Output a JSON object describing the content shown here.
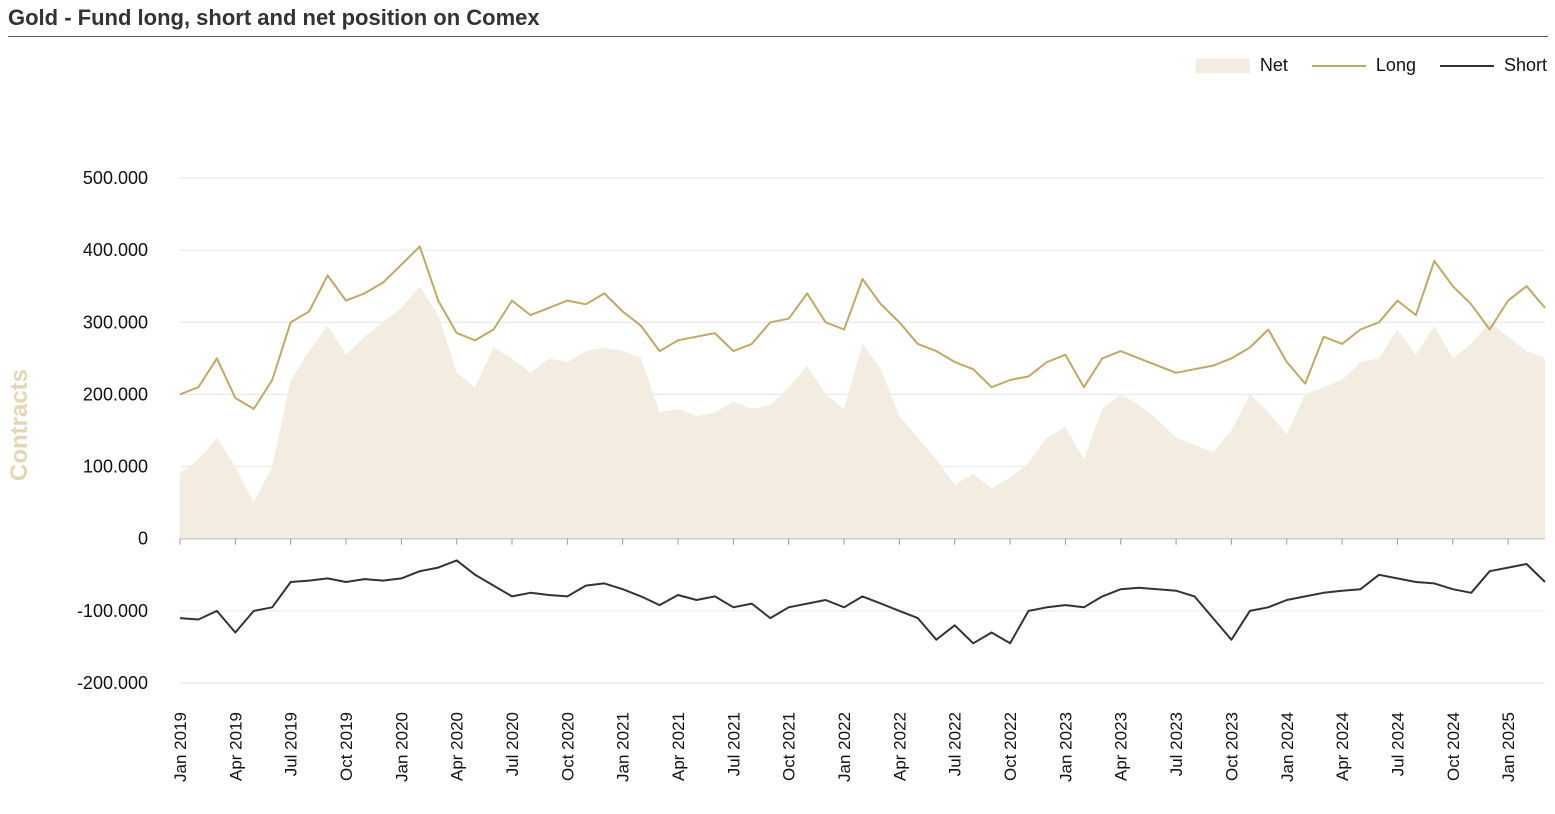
{
  "title": "Gold - Fund long, short and net position on Comex",
  "colors": {
    "net": "#f3ede1",
    "long": "#c1a865",
    "short": "#333333",
    "ylabel": "#e4d5b3",
    "grid": "#e6e6e6"
  },
  "chart_data": {
    "type": "line",
    "title": "Gold - Fund long, short and net position on Comex",
    "xlabel": "",
    "ylabel": "Contracts",
    "ylim": [
      -200000,
      500000
    ],
    "yticks": [
      500000,
      400000,
      300000,
      200000,
      100000,
      0,
      -100000,
      -200000
    ],
    "ytick_labels": [
      "500.000",
      "400.000",
      "300.000",
      "200.000",
      "100.000",
      "0",
      "-100.000",
      "-200.000"
    ],
    "x_start": "2019-01",
    "x_end": "2025-03",
    "xtick_labels": [
      "Jan 2019",
      "Apr 2019",
      "Jul 2019",
      "Oct 2019",
      "Jan 2020",
      "Apr 2020",
      "Jul 2020",
      "Oct 2020",
      "Jan 2021",
      "Apr 2021",
      "Jul 2021",
      "Oct 2021",
      "Jan 2022",
      "Apr 2022",
      "Jul 2022",
      "Oct 2022",
      "Jan 2023",
      "Apr 2023",
      "Jul 2023",
      "Oct 2023",
      "Jan 2024",
      "Apr 2024",
      "Jul 2024",
      "Oct 2024",
      "Jan 2025"
    ],
    "grid": true,
    "legend_position": "top-right",
    "x": [
      "Jan 2019",
      "Feb 2019",
      "Mar 2019",
      "Apr 2019",
      "May 2019",
      "Jun 2019",
      "Jul 2019",
      "Aug 2019",
      "Sep 2019",
      "Oct 2019",
      "Nov 2019",
      "Dec 2019",
      "Jan 2020",
      "Feb 2020",
      "Mar 2020",
      "Apr 2020",
      "May 2020",
      "Jun 2020",
      "Jul 2020",
      "Aug 2020",
      "Sep 2020",
      "Oct 2020",
      "Nov 2020",
      "Dec 2020",
      "Jan 2021",
      "Feb 2021",
      "Mar 2021",
      "Apr 2021",
      "May 2021",
      "Jun 2021",
      "Jul 2021",
      "Aug 2021",
      "Sep 2021",
      "Oct 2021",
      "Nov 2021",
      "Dec 2021",
      "Jan 2022",
      "Feb 2022",
      "Mar 2022",
      "Apr 2022",
      "May 2022",
      "Jun 2022",
      "Jul 2022",
      "Aug 2022",
      "Sep 2022",
      "Oct 2022",
      "Nov 2022",
      "Dec 2022",
      "Jan 2023",
      "Feb 2023",
      "Mar 2023",
      "Apr 2023",
      "May 2023",
      "Jun 2023",
      "Jul 2023",
      "Aug 2023",
      "Sep 2023",
      "Oct 2023",
      "Nov 2023",
      "Dec 2023",
      "Jan 2024",
      "Feb 2024",
      "Mar 2024",
      "Apr 2024",
      "May 2024",
      "Jun 2024",
      "Jul 2024",
      "Aug 2024",
      "Sep 2024",
      "Oct 2024",
      "Nov 2024",
      "Dec 2024",
      "Jan 2025",
      "Feb 2025",
      "Mar 2025"
    ],
    "series": [
      {
        "name": "Net",
        "type": "area",
        "values": [
          90000,
          110000,
          140000,
          100000,
          50000,
          100000,
          220000,
          260000,
          295000,
          255000,
          280000,
          300000,
          320000,
          350000,
          310000,
          230000,
          210000,
          265000,
          250000,
          230000,
          250000,
          245000,
          260000,
          265000,
          260000,
          250000,
          175000,
          180000,
          170000,
          175000,
          190000,
          180000,
          185000,
          210000,
          240000,
          200000,
          180000,
          270000,
          235000,
          170000,
          140000,
          110000,
          75000,
          90000,
          70000,
          85000,
          105000,
          140000,
          155000,
          110000,
          180000,
          200000,
          185000,
          165000,
          140000,
          130000,
          120000,
          150000,
          200000,
          175000,
          145000,
          200000,
          210000,
          220000,
          245000,
          250000,
          290000,
          255000,
          295000,
          250000,
          270000,
          300000,
          280000,
          260000,
          250000
        ]
      },
      {
        "name": "Long",
        "type": "line",
        "values": [
          200000,
          210000,
          250000,
          195000,
          180000,
          220000,
          300000,
          315000,
          365000,
          330000,
          340000,
          355000,
          380000,
          405000,
          330000,
          285000,
          275000,
          290000,
          330000,
          310000,
          320000,
          330000,
          325000,
          340000,
          315000,
          295000,
          260000,
          275000,
          280000,
          285000,
          260000,
          270000,
          300000,
          305000,
          340000,
          300000,
          290000,
          360000,
          325000,
          300000,
          270000,
          260000,
          245000,
          235000,
          210000,
          220000,
          225000,
          245000,
          255000,
          210000,
          250000,
          260000,
          250000,
          240000,
          230000,
          235000,
          240000,
          250000,
          265000,
          290000,
          245000,
          215000,
          280000,
          270000,
          290000,
          300000,
          330000,
          310000,
          385000,
          350000,
          325000,
          290000,
          330000,
          350000,
          320000
        ]
      },
      {
        "name": "Short",
        "type": "line",
        "values": [
          -110000,
          -112000,
          -100000,
          -130000,
          -100000,
          -95000,
          -60000,
          -58000,
          -55000,
          -60000,
          -56000,
          -58000,
          -55000,
          -45000,
          -40000,
          -30000,
          -50000,
          -65000,
          -80000,
          -75000,
          -78000,
          -80000,
          -65000,
          -62000,
          -70000,
          -80000,
          -92000,
          -78000,
          -85000,
          -80000,
          -95000,
          -90000,
          -110000,
          -95000,
          -90000,
          -85000,
          -95000,
          -80000,
          -90000,
          -100000,
          -110000,
          -140000,
          -120000,
          -145000,
          -130000,
          -145000,
          -100000,
          -95000,
          -92000,
          -95000,
          -80000,
          -70000,
          -68000,
          -70000,
          -72000,
          -80000,
          -110000,
          -140000,
          -100000,
          -95000,
          -85000,
          -80000,
          -75000,
          -72000,
          -70000,
          -50000,
          -55000,
          -60000,
          -62000,
          -70000,
          -75000,
          -45000,
          -40000,
          -35000,
          -60000
        ]
      }
    ]
  }
}
